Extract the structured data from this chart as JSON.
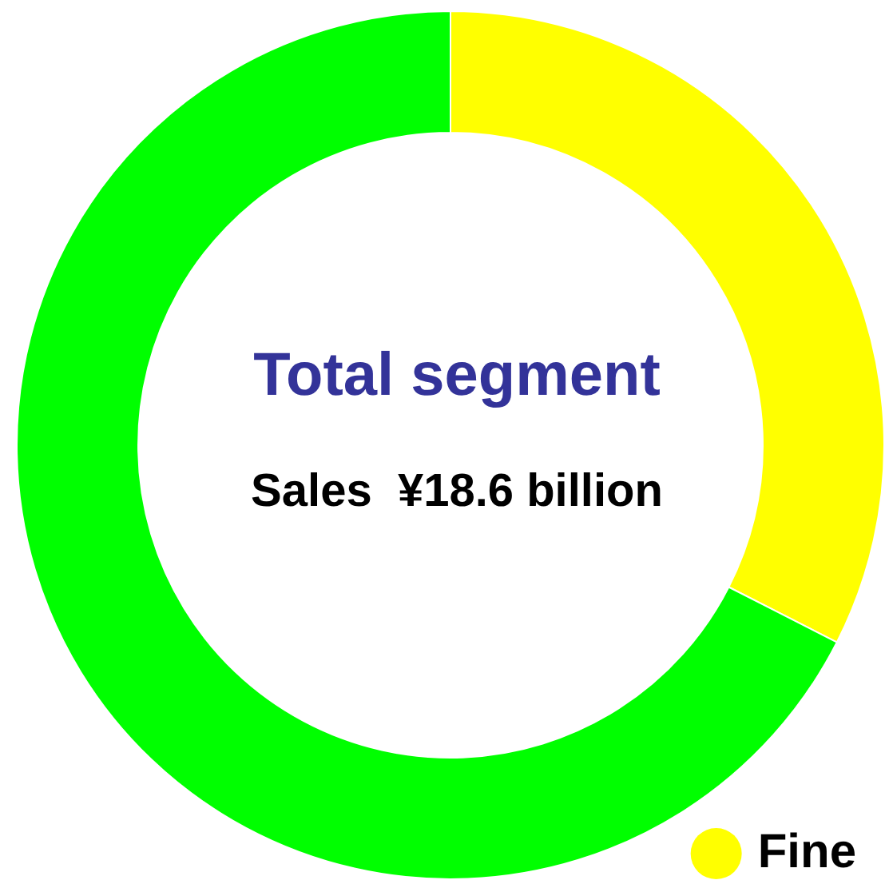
{
  "chart_data": {
    "type": "donut",
    "title": "Total segment",
    "annotations": [
      "Sales  ¥18.6 billion"
    ],
    "categories": [
      "Fine",
      null
    ],
    "values": [
      32.5,
      67.5
    ],
    "colors": [
      "#ffff00",
      "#00ff00"
    ],
    "legend": "bottom right"
  }
}
